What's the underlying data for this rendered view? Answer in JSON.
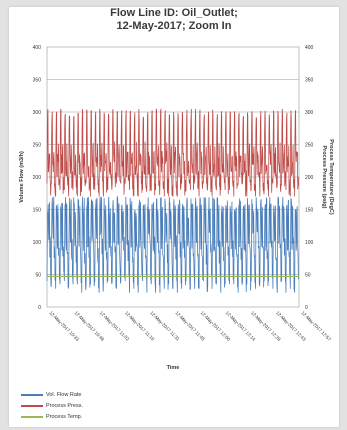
{
  "chart_data": {
    "type": "line",
    "title_lines": [
      "Flow Line ID: Oil_Outlet;",
      "12-May-2017; Zoom In"
    ],
    "xlabel": "Time",
    "ylabel": "Volume Flow (m3/h)",
    "y2label_lines": [
      "Process Pressure (psig)",
      "Process Temperature (DegC)"
    ],
    "ylim": [
      0,
      400
    ],
    "y_ticks": [
      "0",
      "50",
      "100",
      "150",
      "200",
      "250",
      "300",
      "350",
      "400"
    ],
    "y2_ticks": [
      "0",
      "50",
      "100",
      "150",
      "200",
      "250",
      "300",
      "350",
      "400"
    ],
    "grid": true,
    "legend_position": "bottom-left",
    "x_tick_labels": [
      "12-May-2017 10:33",
      "12-May-2017 10:48",
      "12-May-2017 11:02",
      "12-May-2017 11:16",
      "12-May-2017 11:31",
      "12-May-2017 11:45",
      "12-May-2017 12:00",
      "12-May-2017 12:14",
      "12-May-2017 12:28",
      "12-May-2017 12:43",
      "12-May-2017 12:57"
    ],
    "series": [
      {
        "name": "Vol. Flow Rate",
        "color": "#4a7ebb",
        "pattern": "oscillating",
        "cycles": 58,
        "low_values": [
          22,
          28,
          35,
          40
        ],
        "high_values": [
          150,
          160,
          170
        ],
        "mid_values": [
          85,
          95,
          110
        ]
      },
      {
        "name": "Process Press.",
        "color": "#be4b48",
        "pattern": "oscillating",
        "cycles": 58,
        "low_values": [
          170,
          180,
          190
        ],
        "high_values": [
          295,
          300,
          305
        ],
        "band_values": [
          200,
          215,
          230
        ]
      },
      {
        "name": "Process Temp.",
        "color": "#98b954",
        "pattern": "flat",
        "value": 47
      }
    ]
  }
}
